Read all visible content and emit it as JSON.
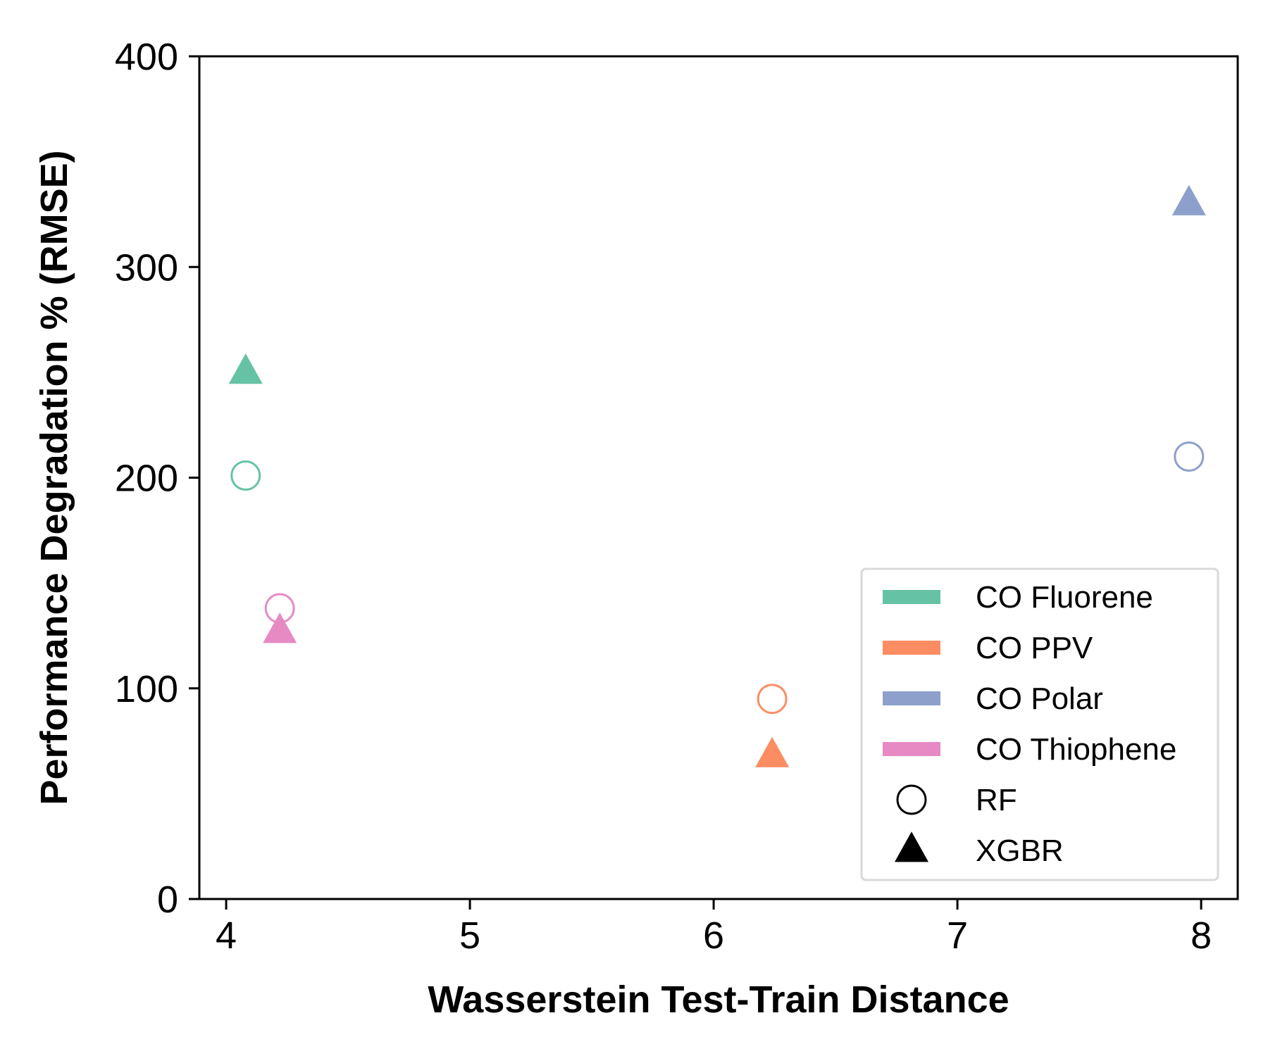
{
  "chart_data": {
    "type": "scatter",
    "xlabel": "Wasserstein Test-Train Distance",
    "ylabel": "Performance Degradation % (RMSE)",
    "xlim": [
      3.89,
      8.15
    ],
    "ylim": [
      0,
      400
    ],
    "xticks": [
      4,
      5,
      6,
      7,
      8
    ],
    "yticks": [
      0,
      100,
      200,
      300,
      400
    ],
    "grid": false,
    "legend_position": "bottom-right",
    "groups": [
      {
        "name": "CO Fluorene",
        "color": "#66c2a5"
      },
      {
        "name": "CO PPV",
        "color": "#fc8d62"
      },
      {
        "name": "CO Polar",
        "color": "#8da0cb"
      },
      {
        "name": "CO Thiophene",
        "color": "#e78ac3"
      }
    ],
    "models": [
      {
        "name": "RF",
        "marker": "open-circle"
      },
      {
        "name": "XGBR",
        "marker": "filled-triangle"
      }
    ],
    "series": [
      {
        "group": "CO Fluorene",
        "points": [
          {
            "model": "RF",
            "x": 4.08,
            "y": 201
          },
          {
            "model": "XGBR",
            "x": 4.08,
            "y": 250
          }
        ]
      },
      {
        "group": "CO PPV",
        "points": [
          {
            "model": "RF",
            "x": 6.24,
            "y": 95
          },
          {
            "model": "XGBR",
            "x": 6.24,
            "y": 68
          }
        ]
      },
      {
        "group": "CO Polar",
        "points": [
          {
            "model": "RF",
            "x": 7.95,
            "y": 210
          },
          {
            "model": "XGBR",
            "x": 7.95,
            "y": 330
          }
        ]
      },
      {
        "group": "CO Thiophene",
        "points": [
          {
            "model": "RF",
            "x": 4.22,
            "y": 138
          },
          {
            "model": "XGBR",
            "x": 4.22,
            "y": 127
          }
        ]
      }
    ]
  }
}
